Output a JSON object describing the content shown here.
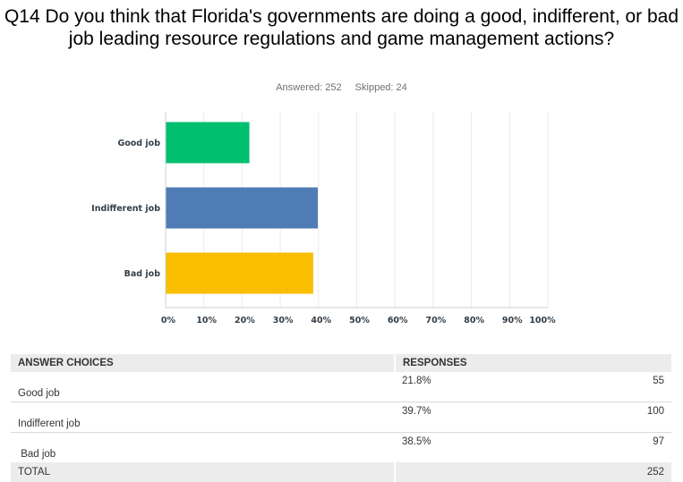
{
  "question": "Q14 Do you think that Florida's governments are doing a good, indifferent, or bad job leading resource regulations and game management actions?",
  "answered_label": "Answered: 252",
  "skipped_label": "Skipped: 24",
  "chart_data": {
    "type": "bar",
    "orientation": "horizontal",
    "categories": [
      "Good job",
      "Indifferent job",
      "Bad job"
    ],
    "values": [
      21.8,
      39.7,
      38.5
    ],
    "colors": [
      "#00bf6f",
      "#507cb6",
      "#f9be00"
    ],
    "xlim": [
      0,
      100
    ],
    "ticks": [
      "0%",
      "10%",
      "20%",
      "30%",
      "40%",
      "50%",
      "60%",
      "70%",
      "80%",
      "90%",
      "100%"
    ],
    "grid": true
  },
  "table": {
    "headers": [
      "ANSWER CHOICES",
      "RESPONSES"
    ],
    "rows": [
      {
        "choice": "Good job",
        "percent": "21.8%",
        "count": "55"
      },
      {
        "choice": "Indifferent job",
        "percent": "39.7%",
        "count": "100"
      },
      {
        "choice": " Bad job",
        "percent": "38.5%",
        "count": "97"
      }
    ],
    "total_label": "TOTAL",
    "total": "252"
  }
}
